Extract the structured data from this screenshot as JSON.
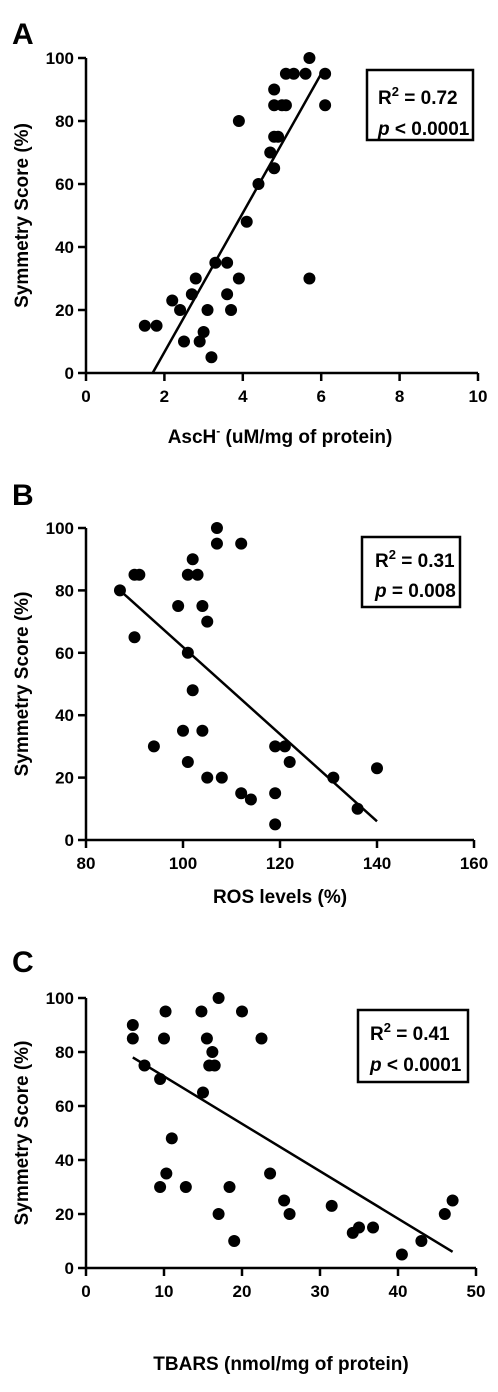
{
  "chart_data": [
    {
      "type": "scatter",
      "panel": "A",
      "xlabel": "AscH",
      "xlabel_sup": "-",
      "xlabel_rest": " (uM/mg of protein)",
      "ylabel": "Symmetry Score (%)",
      "xlim": [
        0,
        10
      ],
      "ylim": [
        0,
        100
      ],
      "xticks": [
        0,
        2,
        4,
        6,
        8,
        10
      ],
      "yticks": [
        0,
        20,
        40,
        60,
        80,
        100
      ],
      "stats": {
        "r2_label": "R",
        "r2_sup": "2",
        "r2_value": " = 0.72",
        "p_label": "p",
        "p_value": " < 0.0001"
      },
      "regression": [
        [
          1.7,
          0
        ],
        [
          6.0,
          95
        ]
      ],
      "points": [
        [
          1.5,
          15
        ],
        [
          1.8,
          15
        ],
        [
          2.2,
          23
        ],
        [
          2.4,
          20
        ],
        [
          2.5,
          10
        ],
        [
          2.7,
          25
        ],
        [
          2.8,
          30
        ],
        [
          2.9,
          10
        ],
        [
          3.0,
          13
        ],
        [
          3.1,
          20
        ],
        [
          3.2,
          5
        ],
        [
          3.3,
          35
        ],
        [
          3.6,
          35
        ],
        [
          3.6,
          25
        ],
        [
          3.7,
          20
        ],
        [
          3.9,
          30
        ],
        [
          3.9,
          80
        ],
        [
          4.1,
          48
        ],
        [
          4.4,
          60
        ],
        [
          4.7,
          70
        ],
        [
          4.8,
          65
        ],
        [
          4.8,
          75
        ],
        [
          4.8,
          85
        ],
        [
          4.8,
          90
        ],
        [
          4.9,
          75
        ],
        [
          5.0,
          85
        ],
        [
          5.1,
          95
        ],
        [
          5.1,
          85
        ],
        [
          5.3,
          95
        ],
        [
          5.6,
          95
        ],
        [
          5.7,
          100
        ],
        [
          5.7,
          30
        ],
        [
          6.1,
          95
        ],
        [
          6.1,
          85
        ]
      ]
    },
    {
      "type": "scatter",
      "panel": "B",
      "xlabel": "ROS levels (%)",
      "xlabel_sup": "",
      "xlabel_rest": "",
      "ylabel": "Symmetry Score (%)",
      "xlim": [
        80,
        160
      ],
      "ylim": [
        0,
        100
      ],
      "xticks": [
        80,
        100,
        120,
        140,
        160
      ],
      "yticks": [
        0,
        20,
        40,
        60,
        80,
        100
      ],
      "stats": {
        "r2_label": "R",
        "r2_sup": "2",
        "r2_value": " = 0.31",
        "p_label": "p",
        "p_value": " = 0.008"
      },
      "regression": [
        [
          87,
          80
        ],
        [
          140,
          6
        ]
      ],
      "points": [
        [
          87,
          80
        ],
        [
          90,
          85
        ],
        [
          90,
          65
        ],
        [
          91,
          85
        ],
        [
          94,
          30
        ],
        [
          99,
          75
        ],
        [
          100,
          35
        ],
        [
          101,
          25
        ],
        [
          101,
          85
        ],
        [
          101,
          60
        ],
        [
          102,
          90
        ],
        [
          102,
          48
        ],
        [
          103,
          85
        ],
        [
          104,
          75
        ],
        [
          104,
          35
        ],
        [
          105,
          70
        ],
        [
          105,
          20
        ],
        [
          107,
          100
        ],
        [
          107,
          95
        ],
        [
          108,
          20
        ],
        [
          112,
          95
        ],
        [
          112,
          15
        ],
        [
          114,
          13
        ],
        [
          119,
          30
        ],
        [
          119,
          15
        ],
        [
          119,
          5
        ],
        [
          121,
          30
        ],
        [
          122,
          25
        ],
        [
          131,
          20
        ],
        [
          136,
          10
        ],
        [
          140,
          23
        ]
      ]
    },
    {
      "type": "scatter",
      "panel": "C",
      "xlabel": "TBARS (nmol/mg of protein)",
      "xlabel_sup": "",
      "xlabel_rest": "",
      "ylabel": "Symmetry Score (%)",
      "xlim": [
        0,
        50
      ],
      "ylim": [
        0,
        100
      ],
      "xticks": [
        0,
        10,
        20,
        30,
        40,
        50
      ],
      "yticks": [
        0,
        20,
        40,
        60,
        80,
        100
      ],
      "stats": {
        "r2_label": "R",
        "r2_sup": "2",
        "r2_value": " = 0.41",
        "p_label": "p",
        "p_value": " < 0.0001"
      },
      "regression": [
        [
          6,
          78
        ],
        [
          47,
          6
        ]
      ],
      "points": [
        [
          6,
          85
        ],
        [
          6,
          90
        ],
        [
          7.5,
          75
        ],
        [
          9.5,
          70
        ],
        [
          9.5,
          30
        ],
        [
          10,
          85
        ],
        [
          10.2,
          95
        ],
        [
          10.3,
          35
        ],
        [
          11,
          48
        ],
        [
          12.8,
          30
        ],
        [
          14.8,
          95
        ],
        [
          15,
          65
        ],
        [
          15.5,
          85
        ],
        [
          15.8,
          75
        ],
        [
          16.2,
          80
        ],
        [
          16.5,
          75
        ],
        [
          17,
          100
        ],
        [
          17,
          20
        ],
        [
          18.4,
          30
        ],
        [
          19,
          10
        ],
        [
          20,
          95
        ],
        [
          22.5,
          85
        ],
        [
          23.6,
          35
        ],
        [
          25.4,
          25
        ],
        [
          26.1,
          20
        ],
        [
          31.5,
          23
        ],
        [
          34.2,
          13
        ],
        [
          35,
          15
        ],
        [
          36.8,
          15
        ],
        [
          40.5,
          5
        ],
        [
          43,
          10
        ],
        [
          46,
          20
        ],
        [
          47,
          25
        ]
      ]
    }
  ]
}
